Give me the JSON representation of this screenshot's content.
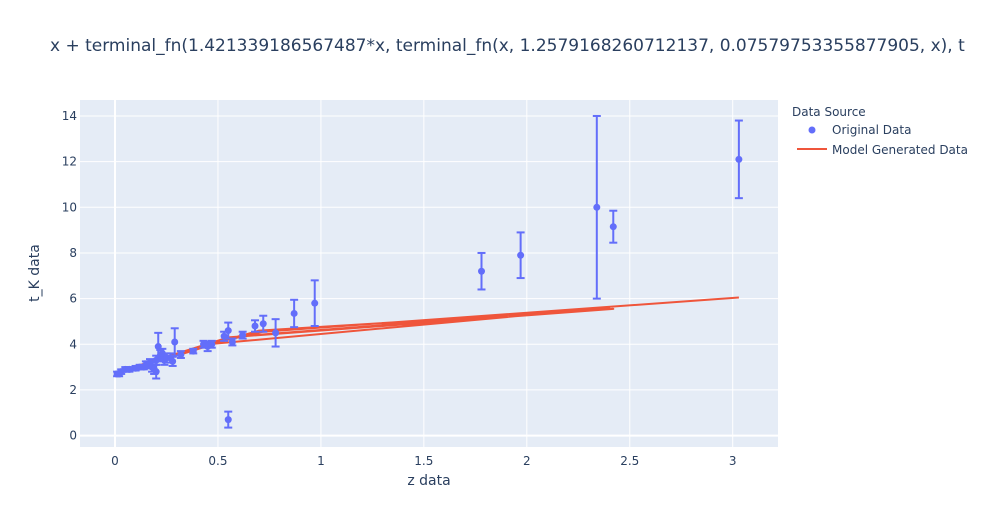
{
  "chart_data": {
    "type": "scatter",
    "title": "x + terminal_fn(1.42133918656748​7*x, terminal_fn(x, 1.2579168260712137, 0.07579753355877905, x), t",
    "xlabel": "z data",
    "ylabel": "t_K data",
    "xlim": [
      -0.17,
      3.22
    ],
    "ylim": [
      -0.5,
      14.7
    ],
    "x_ticks": [
      0,
      0.5,
      1,
      1.5,
      2,
      2.5,
      3
    ],
    "x_tick_labels": [
      "0",
      "0.5",
      "1",
      "1.5",
      "2",
      "2.5",
      "3"
    ],
    "y_ticks": [
      0,
      2,
      4,
      6,
      8,
      10,
      12,
      14
    ],
    "y_tick_labels": [
      "0",
      "2",
      "4",
      "6",
      "8",
      "10",
      "12",
      "14"
    ],
    "grid": true,
    "legend": {
      "title": "Data Source",
      "placement": "top-right-outside",
      "entries": [
        "Original Data",
        "Model Generated Data"
      ]
    },
    "colors": {
      "plot_bg": "#e5ecf6",
      "grid": "#ffffff",
      "original": "#636efa",
      "model": "#ef553b",
      "text": "#2a3f5f"
    },
    "series": [
      {
        "name": "Original Data",
        "mode": "markers",
        "x": [
          0.01,
          0.02,
          0.03,
          0.05,
          0.07,
          0.1,
          0.12,
          0.14,
          0.15,
          0.16,
          0.17,
          0.18,
          0.19,
          0.2,
          0.2,
          0.21,
          0.22,
          0.23,
          0.24,
          0.25,
          0.27,
          0.28,
          0.29,
          0.32,
          0.38,
          0.43,
          0.45,
          0.47,
          0.53,
          0.55,
          0.55,
          0.57,
          0.62,
          0.68,
          0.72,
          0.78,
          0.87,
          0.97,
          1.78,
          1.97,
          2.34,
          2.42,
          3.03
        ],
        "y": [
          2.7,
          2.7,
          2.8,
          2.9,
          2.9,
          2.95,
          3.0,
          3.0,
          3.1,
          3.1,
          3.2,
          3.0,
          2.9,
          2.8,
          3.3,
          3.9,
          3.5,
          3.6,
          3.3,
          3.4,
          3.4,
          3.25,
          4.1,
          3.55,
          3.7,
          4.0,
          3.9,
          4.0,
          4.35,
          0.7,
          4.6,
          4.1,
          4.4,
          4.8,
          4.9,
          4.5,
          5.35,
          5.8,
          7.2,
          7.9,
          10.0,
          9.15,
          12.1
        ],
        "error_y": [
          0.1,
          0.1,
          0.1,
          0.1,
          0.1,
          0.1,
          0.1,
          0.1,
          0.15,
          0.15,
          0.15,
          0.2,
          0.2,
          0.3,
          0.2,
          0.6,
          0.25,
          0.2,
          0.2,
          0.2,
          0.2,
          0.2,
          0.6,
          0.15,
          0.1,
          0.15,
          0.2,
          0.15,
          0.2,
          0.35,
          0.35,
          0.15,
          0.15,
          0.25,
          0.35,
          0.6,
          0.6,
          1.0,
          0.8,
          1.0,
          4.0,
          0.7,
          1.7
        ]
      },
      {
        "name": "Model Generated Data",
        "mode": "lines",
        "x": [
          0.0,
          0.2,
          0.45,
          0.7,
          2.42,
          0.55,
          0.25,
          0.0,
          0.3,
          0.6,
          2.4,
          0.45,
          0.15,
          0.0,
          0.22,
          0.5,
          0.72,
          3.03
        ],
        "y": [
          2.7,
          3.3,
          3.95,
          4.6,
          5.55,
          4.3,
          3.45,
          2.75,
          3.5,
          4.35,
          5.6,
          4.0,
          3.1,
          2.7,
          3.35,
          4.1,
          4.55,
          6.05
        ]
      }
    ]
  }
}
